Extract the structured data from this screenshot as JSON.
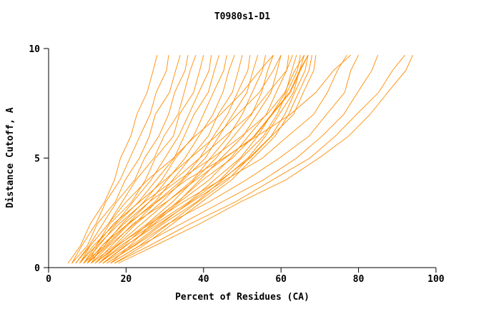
{
  "title": "T0980s1-D1",
  "colors": {
    "curve": "#ff8c00",
    "axis": "#000000",
    "background": "#ffffff"
  },
  "chart_data": {
    "type": "line",
    "title": "T0980s1-D1",
    "xlabel": "Percent of Residues (CA)",
    "ylabel": "Distance Cutoff, A",
    "xlim": [
      0,
      100
    ],
    "ylim": [
      0,
      10
    ],
    "x_ticks": [
      0,
      20,
      40,
      60,
      80,
      100
    ],
    "y_ticks": [
      0,
      5,
      10
    ],
    "grid": false,
    "legend": "none",
    "cutoffs": [
      0.2,
      1,
      2,
      3,
      4,
      5,
      6,
      7,
      8,
      9,
      9.7
    ],
    "curves": [
      [
        5,
        8,
        11,
        14,
        17,
        19,
        21,
        23,
        25,
        27,
        28
      ],
      [
        6,
        9,
        12,
        15,
        18,
        21,
        24,
        26,
        28,
        30,
        31
      ],
      [
        6,
        10,
        13,
        17,
        20,
        23,
        26,
        28,
        31,
        33,
        34
      ],
      [
        7,
        10,
        14,
        18,
        22,
        25,
        28,
        31,
        33,
        35,
        36
      ],
      [
        7,
        11,
        15,
        19,
        23,
        27,
        30,
        33,
        35,
        37,
        38
      ],
      [
        8,
        12,
        16,
        21,
        25,
        28,
        32,
        34,
        37,
        39,
        40
      ],
      [
        8,
        12,
        17,
        22,
        26,
        30,
        34,
        36,
        39,
        41,
        42
      ],
      [
        9,
        13,
        18,
        23,
        28,
        32,
        35,
        38,
        41,
        43,
        44
      ],
      [
        9,
        14,
        19,
        25,
        29,
        33,
        37,
        40,
        43,
        45,
        46
      ],
      [
        10,
        15,
        20,
        26,
        31,
        35,
        39,
        42,
        45,
        47,
        48
      ],
      [
        10,
        15,
        21,
        27,
        32,
        37,
        41,
        44,
        47,
        49,
        50
      ],
      [
        11,
        16,
        22,
        28,
        34,
        39,
        43,
        46,
        49,
        51,
        52
      ],
      [
        11,
        17,
        23,
        29,
        35,
        40,
        44,
        48,
        51,
        53,
        54
      ],
      [
        12,
        17,
        24,
        31,
        37,
        42,
        46,
        50,
        53,
        55,
        56
      ],
      [
        12,
        18,
        25,
        32,
        38,
        43,
        48,
        52,
        55,
        57,
        58
      ],
      [
        13,
        19,
        26,
        33,
        39,
        45,
        50,
        54,
        57,
        59,
        60
      ],
      [
        13,
        19,
        27,
        34,
        41,
        47,
        52,
        56,
        59,
        61,
        62
      ],
      [
        14,
        20,
        28,
        36,
        43,
        49,
        54,
        58,
        61,
        63,
        64
      ],
      [
        14,
        21,
        29,
        37,
        44,
        50,
        55,
        59,
        62,
        64,
        65
      ],
      [
        8,
        11,
        15,
        20,
        26,
        32,
        38,
        44,
        50,
        55,
        58
      ],
      [
        9,
        12,
        17,
        23,
        30,
        37,
        43,
        49,
        54,
        58,
        60
      ],
      [
        10,
        13,
        18,
        25,
        32,
        39,
        46,
        52,
        57,
        61,
        63
      ],
      [
        15,
        22,
        30,
        38,
        45,
        51,
        56,
        60,
        63,
        65,
        66
      ],
      [
        16,
        23,
        31,
        39,
        46,
        52,
        57,
        61,
        64,
        66,
        67
      ],
      [
        11,
        14,
        19,
        26,
        34,
        42,
        50,
        56,
        61,
        64,
        66
      ],
      [
        12,
        16,
        22,
        30,
        38,
        46,
        53,
        58,
        62,
        65,
        67
      ],
      [
        13,
        18,
        26,
        35,
        44,
        52,
        58,
        63,
        66,
        68,
        69
      ],
      [
        16,
        21,
        27,
        33,
        40,
        47,
        53,
        58,
        62,
        65,
        67
      ],
      [
        17,
        24,
        32,
        40,
        47,
        53,
        58,
        62,
        65,
        67,
        68
      ],
      [
        14,
        20,
        28,
        37,
        46,
        55,
        62,
        68,
        72,
        75,
        77
      ],
      [
        15,
        22,
        31,
        41,
        51,
        60,
        67,
        72,
        76,
        78,
        80
      ],
      [
        16,
        24,
        34,
        45,
        55,
        64,
        71,
        76,
        80,
        83,
        85
      ],
      [
        17,
        26,
        37,
        48,
        58,
        67,
        74,
        80,
        85,
        89,
        92
      ],
      [
        18,
        27,
        39,
        50,
        61,
        70,
        77,
        83,
        88,
        92,
        94
      ],
      [
        10,
        14,
        20,
        28,
        36,
        45,
        54,
        62,
        69,
        74,
        78
      ]
    ]
  }
}
